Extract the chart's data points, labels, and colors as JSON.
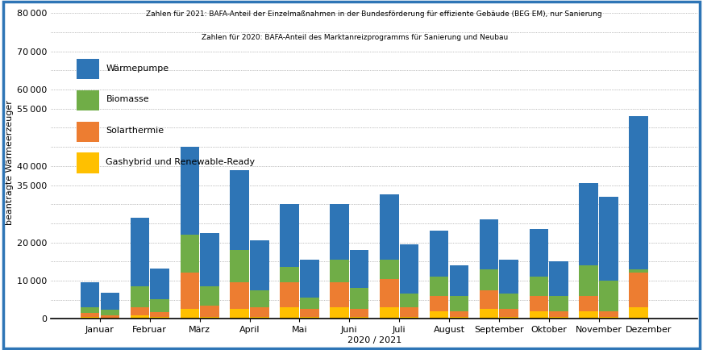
{
  "months": [
    "Januar",
    "Februar",
    "März",
    "April",
    "Mai",
    "Juni",
    "Juli",
    "August",
    "September",
    "Oktober",
    "November",
    "Dezember"
  ],
  "xlabel": "2020 / 2021",
  "ylabel": "beantragte Wärmeerzeuger",
  "legend_line1": "Zahlen für 2021: BAFA-Anteil der Einzelmaßnahmen in der Bundesförderung für effiziente Gebäude (BEG EM), nur Sanierung",
  "legend_line2": "Zahlen für 2020: BAFA-Anteil des Marktanreizprogramms für Sanierung und Neubau",
  "legend_items": [
    "Wärmepumpe",
    "Biomasse",
    "Solarthermie",
    "Gashybrid und Renewable-Ready"
  ],
  "colors": [
    "#2E75B6",
    "#70AD47",
    "#ED7D31",
    "#FFC000"
  ],
  "bar_data_2020": {
    "waermepumpe": [
      6500,
      18000,
      23000,
      21000,
      16500,
      14500,
      17000,
      12000,
      13000,
      12500,
      21500,
      40000
    ],
    "biomasse": [
      1500,
      5500,
      10000,
      8500,
      4000,
      6000,
      5000,
      5000,
      5500,
      5000,
      8000,
      1000
    ],
    "solarthermie": [
      1000,
      2000,
      9500,
      7000,
      6500,
      6500,
      7500,
      4000,
      5000,
      4000,
      4000,
      9000
    ],
    "gashybrid": [
      500,
      1000,
      2500,
      2500,
      3000,
      3000,
      3000,
      2000,
      2500,
      2000,
      2000,
      3000
    ]
  },
  "bar_data_2021": {
    "waermepumpe": [
      4500,
      8000,
      14000,
      13000,
      10000,
      10000,
      13000,
      8000,
      9000,
      9000,
      22000,
      0
    ],
    "biomasse": [
      1500,
      3500,
      5000,
      4500,
      3000,
      5500,
      3500,
      4000,
      4000,
      4000,
      8000,
      0
    ],
    "solarthermie": [
      700,
      1200,
      3000,
      2500,
      2000,
      2000,
      2500,
      1500,
      2000,
      1500,
      1500,
      0
    ],
    "gashybrid": [
      200,
      500,
      500,
      500,
      500,
      500,
      500,
      500,
      500,
      500,
      500,
      0
    ]
  },
  "ylim": [
    0,
    82000
  ],
  "yticks": [
    0,
    10000,
    20000,
    35000,
    40000,
    55000,
    60000,
    70000,
    80000
  ],
  "ytick_labels": [
    "0",
    "10 000",
    "20 000",
    "35 000",
    "40 000",
    "55 000",
    "60 000",
    "70 000",
    "80 000"
  ],
  "background_color": "#FFFFFF",
  "border_color": "#2E75B6",
  "grid_color": "#555555",
  "bar_width": 0.38
}
